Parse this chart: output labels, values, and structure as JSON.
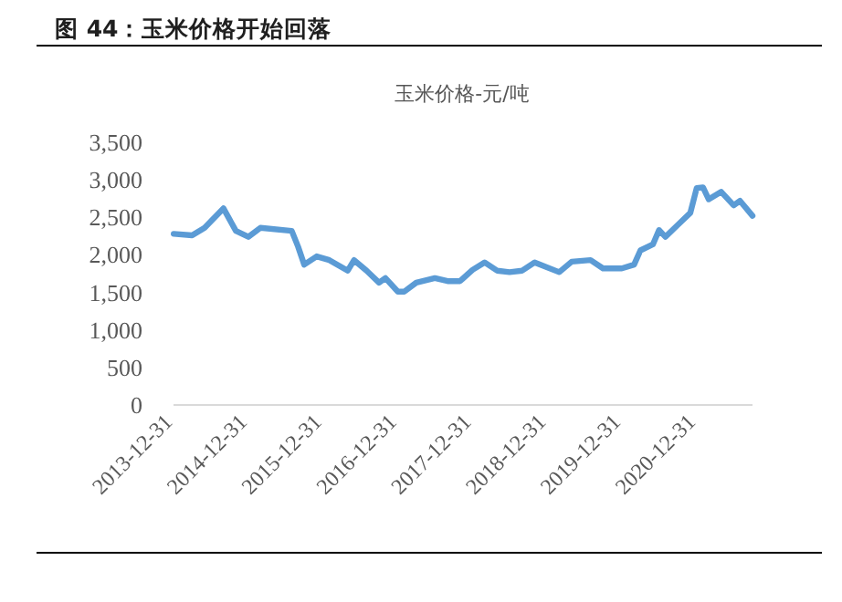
{
  "chart_data": {
    "type": "line",
    "title": "图 44：玉米价格开始回落",
    "subtitle": "玉米价格-元/吨",
    "x": [
      "2014-01",
      "2014-04",
      "2014-06",
      "2014-09",
      "2014-11",
      "2015-01",
      "2015-03",
      "2015-08",
      "2015-09",
      "2015-10",
      "2015-12",
      "2016-02",
      "2016-05",
      "2016-06",
      "2016-08",
      "2016-10",
      "2016-11",
      "2017-01",
      "2017-02",
      "2017-04",
      "2017-07",
      "2017-09",
      "2017-11",
      "2018-01",
      "2018-03",
      "2018-05",
      "2018-07",
      "2018-09",
      "2018-11",
      "2019-03",
      "2019-05",
      "2019-08",
      "2019-10",
      "2020-01",
      "2020-03",
      "2020-04",
      "2020-06",
      "2020-07",
      "2020-08",
      "2020-10",
      "2020-12",
      "2021-01",
      "2021-02",
      "2021-03",
      "2021-05",
      "2021-07",
      "2021-08",
      "2021-10"
    ],
    "series": [
      {
        "color": "#5b9bd5",
        "values": [
          2280,
          2260,
          2360,
          2620,
          2320,
          2240,
          2360,
          2320,
          2110,
          1870,
          1980,
          1930,
          1790,
          1930,
          1790,
          1630,
          1690,
          1510,
          1510,
          1630,
          1690,
          1650,
          1650,
          1800,
          1900,
          1790,
          1770,
          1790,
          1900,
          1770,
          1910,
          1930,
          1820,
          1820,
          1870,
          2060,
          2140,
          2330,
          2240,
          2400,
          2560,
          2890,
          2900,
          2740,
          2840,
          2660,
          2720,
          2520
        ]
      }
    ],
    "xlim": [
      "2013-12-31",
      "2021-10"
    ],
    "xticks": [
      "2013-12-31",
      "2014-12-31",
      "2015-12-31",
      "2016-12-31",
      "2017-12-31",
      "2018-12-31",
      "2019-12-31",
      "2020-12-31"
    ],
    "ylim": [
      0,
      3500
    ],
    "yticks": [
      0,
      500,
      {
        "value": 1000,
        "label": "1,000"
      },
      {
        "value": 1500,
        "label": "1,500"
      },
      {
        "value": 2000,
        "label": "2,000"
      },
      {
        "value": 2500,
        "label": "2,500"
      },
      {
        "value": 3000,
        "label": "3,000"
      },
      {
        "value": 3500,
        "label": "3,500"
      }
    ]
  }
}
